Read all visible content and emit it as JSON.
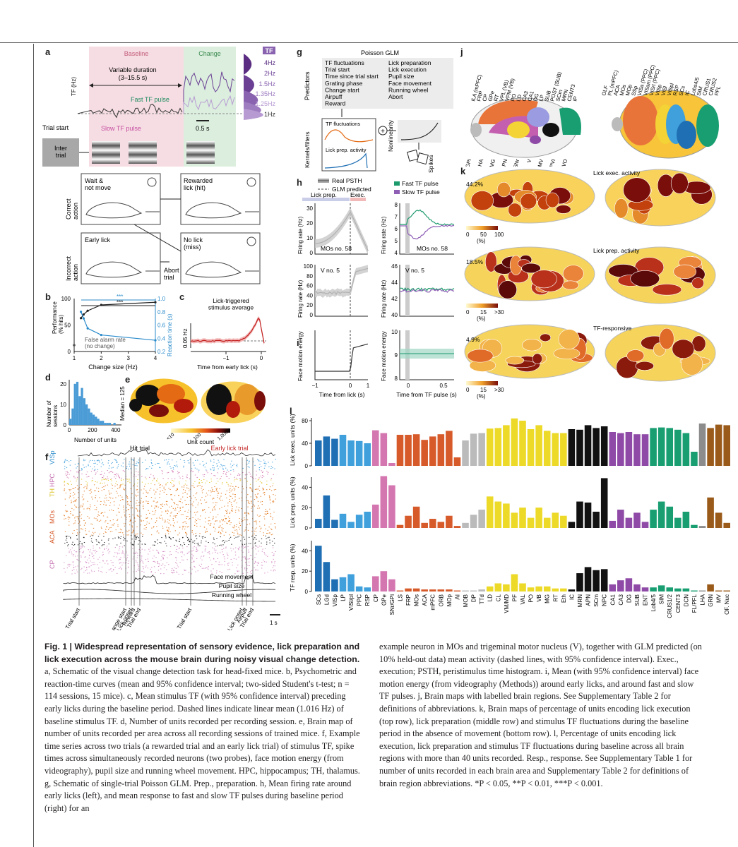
{
  "panel_labels": [
    "a",
    "b",
    "c",
    "d",
    "e",
    "f",
    "g",
    "h",
    "i",
    "j",
    "k",
    "l"
  ],
  "panel_a": {
    "baseline": "Baseline",
    "change": "Change",
    "variable_duration": "Variable duration",
    "duration_range": "(3–15.5 s)",
    "y_axis": "TF (Hz)",
    "fast_pulse": "Fast TF pulse",
    "slow_pulse": "Slow TF pulse",
    "trial_start": "Trial start",
    "scale": "0.5 s",
    "inter_trial": "Inter\ntrial",
    "tf_header": "TF",
    "tf_levels": [
      {
        "label": "4Hz",
        "color": "#5a2d82"
      },
      {
        "label": "2Hz",
        "color": "#6b3f94"
      },
      {
        "label": "1.5Hz",
        "color": "#8a63b0"
      },
      {
        "label": "1.35Hz",
        "color": "#9d7cc0"
      },
      {
        "label": "1.25Hz",
        "color": "#b79ad2"
      },
      {
        "label": "1Hz",
        "color": "#333333"
      }
    ],
    "correct_action": "Correct\naction",
    "incorrect_action": "Incorrect\naction",
    "wait": "Wait &\nnot move",
    "rewarded": "Rewarded\nlick (hit)",
    "early_lick": "Early lick",
    "no_lick": "No lick\n(miss)",
    "abort": "Abort\ntrial"
  },
  "panel_b_chart": {
    "type": "line",
    "xlabel": "Change size (Hz)",
    "ylabel_left": "Performance\n(% hits)",
    "ylabel_right": "Reaction time (s)",
    "xlim": [
      1,
      4
    ],
    "ylim_left": [
      0,
      100
    ],
    "ylim_right": [
      0.2,
      1.0
    ],
    "series": [
      {
        "name": "Performance",
        "x": [
          1.25,
          1.35,
          1.5,
          2,
          4
        ],
        "values": [
          63,
          70,
          77,
          88,
          93
        ]
      },
      {
        "name": "Reaction time",
        "x": [
          1.25,
          1.35,
          1.5,
          2,
          4
        ],
        "values": [
          0.8,
          0.7,
          0.55,
          0.45,
          0.37
        ]
      }
    ],
    "false_alarm_label": "False alarm rate\n(no change)",
    "xticks": [
      "1",
      "2",
      "3",
      "4"
    ],
    "yticks_left": [
      "0",
      "50",
      "100"
    ],
    "yticks_right": [
      "0.2",
      "0.4",
      "0.6",
      "0.8",
      "1.0"
    ],
    "sig": [
      "***",
      "***"
    ]
  },
  "panel_c_chart": {
    "type": "line",
    "title": "Lick-triggered\nstimulus average",
    "xlabel": "Time from early lick (s)",
    "scale": "0.05 Hz",
    "xticks": [
      "−1",
      "0"
    ]
  },
  "panel_d_chart": {
    "type": "bar",
    "xlabel": "Number of units",
    "ylabel": "Number of\nsessions",
    "median_label": "Median = 125",
    "x": [
      20,
      40,
      60,
      80,
      100,
      120,
      140,
      160,
      180,
      200,
      220,
      240,
      260,
      280,
      300,
      320,
      340,
      360,
      380,
      400,
      420
    ],
    "values": [
      3,
      8,
      20,
      21,
      14,
      18,
      13,
      10,
      8,
      6,
      5,
      4,
      3,
      2,
      2,
      1,
      1,
      1,
      0,
      1,
      0
    ],
    "xticks": [
      "0",
      "200",
      "400"
    ],
    "yticks": [
      "0",
      "10",
      "20"
    ]
  },
  "panel_e": {
    "colorbar_label": "Unit count",
    "ticks": [
      "<10",
      "100",
      "1,000"
    ]
  },
  "panel_f": {
    "hit_trial": "Hit trial",
    "early_lick_trial": "Early lick trial",
    "regions": [
      "VISp",
      "HPC",
      "TH",
      "MOs",
      "ACA",
      "CP"
    ],
    "traces": [
      "Face movement",
      "Pupil size",
      "Running wheel"
    ],
    "events": [
      "Trial start",
      "Change start",
      "Lick onset",
      "Reward",
      "Trial end",
      "Trial start",
      "Lick onset",
      "Airpuff",
      "Trial end"
    ],
    "scale": "1 s"
  },
  "panel_g": {
    "title": "Poisson GLM",
    "predictors_label": "Predictors",
    "predictors_col1": [
      "TF fluctuations",
      "Trial start",
      "Time since trial start",
      "Grating phase",
      "Change start",
      "Airpuff",
      "Reward"
    ],
    "predictors_col2": [
      "Lick preparation",
      "Lick execution",
      "Pupil size",
      "Face movement",
      "Running wheel",
      "Abort"
    ],
    "kernels_label": "Kernels/filters",
    "kernel1": "TF fluctuations",
    "kernel2": "Lick prep. activity",
    "nonlinearity": "Nonlinearity",
    "spikes": "Spikes"
  },
  "panel_h": {
    "legend_real": "Real PSTH",
    "legend_glm": "GLM predicted",
    "legend_fast": "Fast TF pulse",
    "legend_slow": "Slow TF pulse",
    "lick_prep": "Lick prep.",
    "exec": "Exec.",
    "ylabel": "Firing rate (Hz)",
    "neuron1": "MOs no. 58",
    "neuron2": "V no. 5",
    "top_left_yticks": [
      "0",
      "10",
      "20",
      "30"
    ],
    "top_right_yticks": [
      "4",
      "5",
      "6",
      "7",
      "8"
    ],
    "bottom_left_yticks": [
      "0",
      "20",
      "40",
      "60",
      "80",
      "100"
    ],
    "bottom_right_yticks": [
      "40",
      "42",
      "44",
      "46"
    ]
  },
  "panel_i": {
    "ylabel": "Face motion energy",
    "xlabel_left": "Time from lick (s)",
    "xlabel_right": "Time from TF pulse (s)",
    "xticks_left": [
      "−1",
      "0",
      "1"
    ],
    "xticks_right": [
      "0",
      "0.5"
    ],
    "yticks": [
      "8",
      "9",
      "10"
    ]
  },
  "panel_j": {
    "sagittal_labels": [
      "ILA (mPFC)",
      "FRP",
      "CP",
      "GPe",
      "RT",
      "VPL (VB)",
      "VPM (VB)",
      "PO",
      "LD",
      "CA3",
      "CA1",
      "DG",
      "LP",
      "SUB",
      "POST (SUB)",
      "SCm",
      "MRN",
      "CENT3",
      "IP",
      "ORB",
      "GPi",
      "LHA",
      "MG",
      "APN",
      "SNr",
      "V",
      "MV",
      "SPVI",
      "SPVO"
    ],
    "dorsal_labels": [
      "OLF",
      "PL (mPFC)",
      "ACA",
      "MOs",
      "MOp",
      "SSp",
      "VISa (PPC)",
      "VISam (PPC)",
      "VISrl (PPC)",
      "VISp",
      "VISl",
      "VISpl",
      "RSP",
      "SCs",
      "IC",
      "Lobs4/5",
      "SIM",
      "CRUS1",
      "CRUS2",
      "PFL"
    ]
  },
  "panel_k": {
    "maps": [
      {
        "title": "Lick exec. activity",
        "max_pct": "44.2%",
        "ticks": [
          "0",
          "50",
          "100"
        ],
        "unit": "(%)"
      },
      {
        "title": "Lick prep. activity",
        "max_pct": "18.5%",
        "ticks": [
          "0",
          "15",
          ">30"
        ],
        "unit": "(%)"
      },
      {
        "title": "TF-responsive",
        "max_pct": "4.9%",
        "ticks": [
          "0",
          "15",
          ">30"
        ],
        "unit": "(%)"
      }
    ]
  },
  "panel_l_chart": {
    "type": "bar",
    "categories": [
      "SCs",
      "LGd",
      "VISp",
      "LP",
      "VISl/pl",
      "PPC",
      "RSP",
      "CP",
      "GPe",
      "SNr/GPi",
      "LS",
      "FRP",
      "MOs",
      "ACA",
      "mPFC",
      "ORB",
      "MOp",
      "AI",
      "MOB",
      "DP",
      "TTd",
      "LD",
      "CL",
      "VM/MD",
      "PF",
      "VAL",
      "PO",
      "VB",
      "MG",
      "RT",
      "Eth",
      "IC",
      "MRN",
      "APN",
      "SCm",
      "NPC",
      "CA1",
      "CA3",
      "DG",
      "SUB",
      "ENT",
      "Lob4/5",
      "SIM",
      "CRUS1/2",
      "CENT3",
      "DCN",
      "FL/PFL",
      "LHA",
      "GRN",
      "MV",
      "OF. Nuc"
    ],
    "colors": [
      "#1f6fb4",
      "#1f6fb4",
      "#1f6fb4",
      "#3fa0dc",
      "#3fa0dc",
      "#3fa0dc",
      "#3fa0dc",
      "#d477b0",
      "#d477b0",
      "#d477b0",
      "#d65a2a",
      "#d65a2a",
      "#d65a2a",
      "#d65a2a",
      "#d65a2a",
      "#d65a2a",
      "#d65a2a",
      "#d65a2a",
      "#bbbbbb",
      "#bbbbbb",
      "#bbbbbb",
      "#ecd928",
      "#ecd928",
      "#ecd928",
      "#ecd928",
      "#ecd928",
      "#ecd928",
      "#ecd928",
      "#ecd928",
      "#ecd928",
      "#ecd928",
      "#111111",
      "#111111",
      "#111111",
      "#111111",
      "#111111",
      "#8e4aa6",
      "#8e4aa6",
      "#8e4aa6",
      "#8e4aa6",
      "#8e4aa6",
      "#199e72",
      "#199e72",
      "#199e72",
      "#199e72",
      "#199e72",
      "#199e72",
      "#8c8c8c",
      "#9a5a1a",
      "#9a5a1a",
      "#9a5a1a"
    ],
    "series": [
      {
        "name": "Lick exec. units (%)",
        "yticks": [
          "0",
          "40",
          "80"
        ],
        "ylim": [
          0,
          85
        ],
        "values": [
          45,
          52,
          48,
          55,
          45,
          44,
          40,
          63,
          58,
          5,
          55,
          55,
          56,
          46,
          52,
          56,
          62,
          15,
          45,
          57,
          58,
          66,
          67,
          72,
          84,
          80,
          65,
          72,
          62,
          58,
          58,
          65,
          64,
          72,
          67,
          70,
          60,
          58,
          60,
          56,
          56,
          67,
          68,
          67,
          64,
          58,
          25,
          75,
          67,
          73,
          72
        ]
      },
      {
        "name": "Lick prep. units (%)",
        "yticks": [
          "0",
          "20",
          "40"
        ],
        "ylim": [
          0,
          50
        ],
        "values": [
          9,
          32,
          8,
          14,
          6,
          13,
          16,
          23,
          51,
          42,
          3,
          12,
          21,
          5,
          9,
          6,
          12,
          2,
          5,
          13,
          18,
          31,
          26,
          24,
          15,
          20,
          10,
          20,
          10,
          15,
          12,
          6,
          26,
          25,
          16,
          49,
          7,
          18,
          10,
          15,
          6,
          18,
          26,
          21,
          10,
          16,
          3,
          2,
          30,
          15,
          5
        ]
      },
      {
        "name": "TF resp. units (%)",
        "yticks": [
          "0",
          "20",
          "40"
        ],
        "ylim": [
          0,
          50
        ],
        "values": [
          45,
          29,
          12,
          14,
          17,
          5,
          4,
          15,
          20,
          12,
          1,
          3,
          3,
          2,
          2,
          2,
          2,
          1,
          1,
          1,
          2,
          5,
          8,
          7,
          17,
          8,
          4,
          5,
          5,
          3,
          3,
          2,
          18,
          24,
          21,
          22,
          7,
          11,
          13,
          7,
          4,
          4,
          6,
          4,
          3,
          3,
          1,
          1,
          7,
          1,
          1
        ]
      }
    ]
  },
  "caption": {
    "heading": "Fig. 1 | Widespread representation of sensory evidence, lick preparation and lick execution across the mouse brain during noisy visual change detection.",
    "left": " a, Schematic of the visual change detection task for head-fixed mice. b, Psychometric and reaction-time curves (mean and 95% confidence interval; two-sided Student's t-test; n = 114 sessions, 15 mice). c, Mean stimulus TF (with 95% confidence interval) preceding early licks during the baseline period. Dashed lines indicate linear mean (1.016 Hz) of baseline stimulus TF. d, Number of units recorded per recording session. e, Brain map of number of units recorded per area across all recording sessions of trained mice. f, Example time series across two trials (a rewarded trial and an early lick trial) of stimulus TF, spike times across simultaneously recorded neurons (two probes), face motion energy (from videography), pupil size and running wheel movement. HPC, hippocampus; TH, thalamus. g, Schematic of single-trial Poisson GLM. Prep., preparation. h, Mean firing rate around early licks (left), and mean response to fast and slow TF pulses during baseline period (right) for an",
    "right": "example neuron in MOs and trigeminal motor nucleus (V), together with GLM predicted (on 10% held-out data) mean activity (dashed lines, with 95% confidence interval). Exec., execution; PSTH, peristimulus time histogram. i, Mean (with 95% confidence interval) face motion energy (from videography (Methods)) around early licks, and around fast and slow TF pulses. j, Brain maps with labelled brain regions. See Supplementary Table 2 for definitions of abbreviations. k, Brain maps of percentage of units encoding lick execution (top row), lick preparation (middle row) and stimulus TF fluctuations during the baseline period in the absence of movement (bottom row). l, Percentage of units encoding lick execution, lick preparation and stimulus TF fluctuations during baseline across all brain regions with more than 40 units recorded. Resp., response. See Supplementary Table 1 for number of units recorded in each brain area and Supplementary Table 2 for definitions of brain region abbreviations. *P < 0.05, **P < 0.01, ***P < 0.001."
  }
}
